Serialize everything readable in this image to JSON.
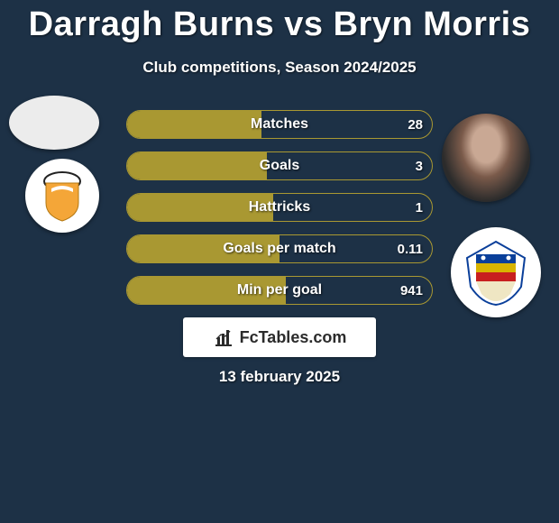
{
  "title": "Darragh Burns vs Bryn Morris",
  "subtitle": "Club competitions, Season 2024/2025",
  "brand": "FcTables.com",
  "date": "13 february 2025",
  "colors": {
    "background": "#1d3146",
    "bar_border": "#a99832",
    "bar_fill": "#a99832",
    "brand_box_bg": "#ffffff",
    "brand_text": "#2b2b2b"
  },
  "stats": [
    {
      "label": "Matches",
      "value_right": "28",
      "fill_pct": 44
    },
    {
      "label": "Goals",
      "value_right": "3",
      "fill_pct": 46
    },
    {
      "label": "Hattricks",
      "value_right": "1",
      "fill_pct": 48
    },
    {
      "label": "Goals per match",
      "value_right": "0.11",
      "fill_pct": 50
    },
    {
      "label": "Min per goal",
      "value_right": "941",
      "fill_pct": 52
    }
  ],
  "left_badge": {
    "name": "mk-dons-badge",
    "shield_fill": "#f4a638",
    "shield_top_stroke": "#222222",
    "ribbon_fill": "#ffffff"
  },
  "right_badge": {
    "name": "club-crest",
    "outer_fill": "#ffffff",
    "stripe1": "#0a3f9a",
    "stripe2": "#d8b400",
    "stripe3": "#c81f1f",
    "bottom": "#efe6c3"
  }
}
